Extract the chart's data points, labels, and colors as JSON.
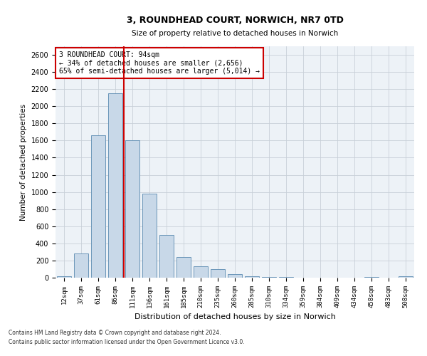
{
  "title1": "3, ROUNDHEAD COURT, NORWICH, NR7 0TD",
  "title2": "Size of property relative to detached houses in Norwich",
  "xlabel": "Distribution of detached houses by size in Norwich",
  "ylabel": "Number of detached properties",
  "categories": [
    "12sqm",
    "37sqm",
    "61sqm",
    "86sqm",
    "111sqm",
    "136sqm",
    "161sqm",
    "185sqm",
    "210sqm",
    "235sqm",
    "260sqm",
    "285sqm",
    "310sqm",
    "334sqm",
    "359sqm",
    "384sqm",
    "409sqm",
    "434sqm",
    "458sqm",
    "483sqm",
    "508sqm"
  ],
  "values": [
    20,
    280,
    1660,
    2150,
    1600,
    980,
    500,
    240,
    130,
    100,
    40,
    20,
    10,
    5,
    4,
    3,
    2,
    2,
    12,
    0,
    15
  ],
  "bar_color": "#c8d8e8",
  "bar_edge_color": "#5a8ab0",
  "vline_color": "#cc0000",
  "vline_x": 3.5,
  "annotation_text": "3 ROUNDHEAD COURT: 94sqm\n← 34% of detached houses are smaller (2,656)\n65% of semi-detached houses are larger (5,014) →",
  "annotation_box_facecolor": "#ffffff",
  "annotation_box_edgecolor": "#cc0000",
  "ylim": [
    0,
    2700
  ],
  "yticks": [
    0,
    200,
    400,
    600,
    800,
    1000,
    1200,
    1400,
    1600,
    1800,
    2000,
    2200,
    2400,
    2600
  ],
  "grid_color": "#c8d0d8",
  "bg_color": "#edf2f7",
  "footer1": "Contains HM Land Registry data © Crown copyright and database right 2024.",
  "footer2": "Contains public sector information licensed under the Open Government Licence v3.0."
}
